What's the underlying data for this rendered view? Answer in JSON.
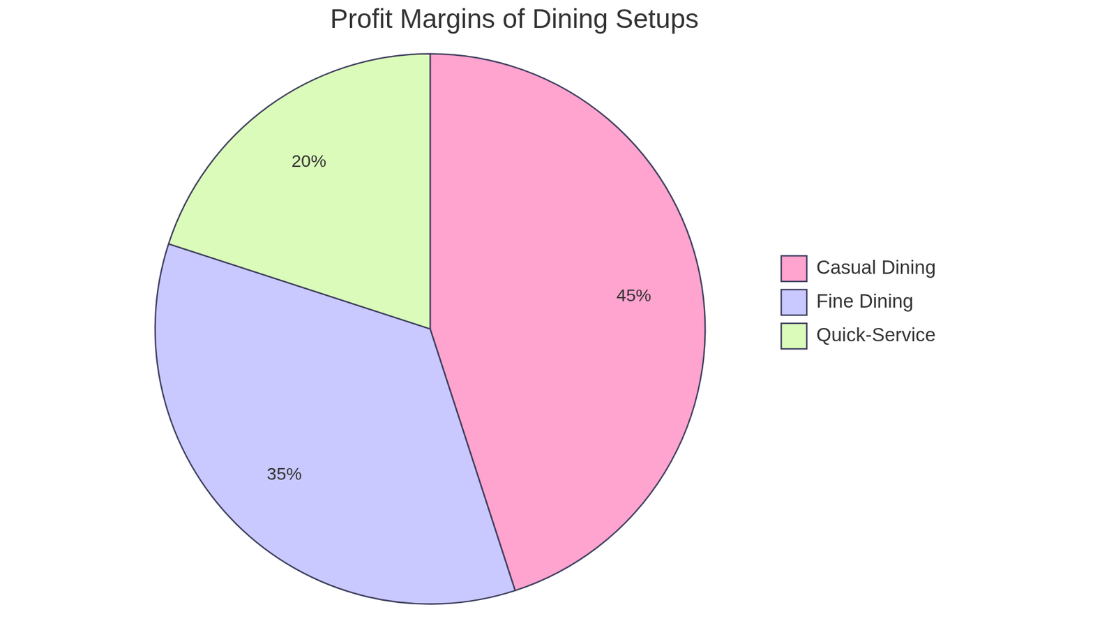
{
  "chart_data": {
    "type": "pie",
    "title": "Profit Margins of Dining Setups",
    "categories": [
      "Casual Dining",
      "Fine Dining",
      "Quick-Service"
    ],
    "values": [
      45,
      35,
      20
    ],
    "value_labels": [
      "45%",
      "35%",
      "20%"
    ],
    "colors": [
      "#ffa3cf",
      "#c9c9ff",
      "#dbfbba"
    ],
    "data_labels": true,
    "legend": "right"
  }
}
